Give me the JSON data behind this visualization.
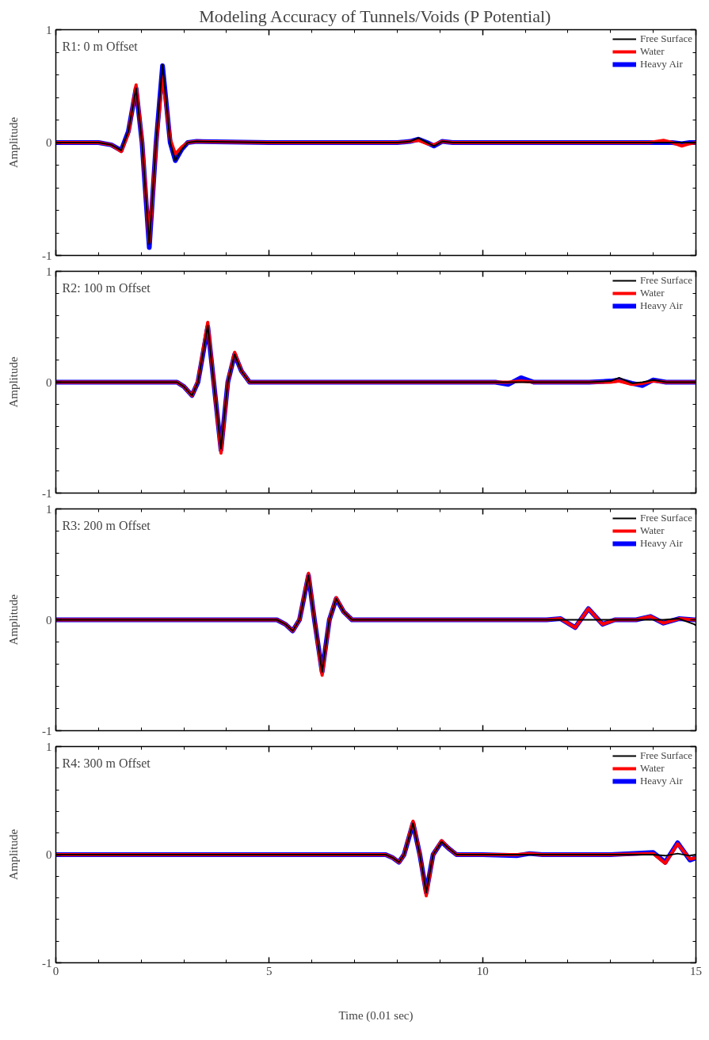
{
  "chart_data": [
    {
      "type": "line",
      "title": "Modeling Accuracy of Tunnels/Voids (P Potential)",
      "ylabel": "Amplitude",
      "annotations": [
        "R1:   0 m Offset"
      ],
      "xlim": [
        0,
        15
      ],
      "xticks": [
        0,
        5,
        10,
        15
      ],
      "ylim": [
        -1,
        1
      ],
      "yticks": [
        -1,
        0,
        1
      ],
      "grid": false,
      "legend": "top right",
      "tick_labels": "y",
      "line_style": "solid",
      "x": [
        0,
        1.0,
        1.3,
        1.53,
        1.7,
        1.88,
        2.02,
        2.19,
        2.35,
        2.5,
        2.68,
        2.8,
        2.95,
        3.09,
        3.3,
        5,
        8.0,
        8.3,
        8.5,
        8.7,
        8.86,
        9.05,
        9.3,
        10,
        12,
        13.9,
        14.24,
        14.45,
        14.67,
        14.85,
        15
      ],
      "series": [
        {
          "name": "Free Surface",
          "color": "#000000",
          "values": [
            0,
            0,
            -0.02,
            -0.07,
            0.1,
            0.48,
            0,
            -0.9,
            0,
            0.69,
            0,
            -0.16,
            -0.06,
            0,
            0.01,
            0,
            0,
            0.01,
            0.04,
            0,
            -0.03,
            0.01,
            0,
            0,
            0,
            0,
            0,
            0,
            0,
            0,
            0
          ]
        },
        {
          "name": "Water",
          "color": "#ff0000",
          "values": [
            0,
            0,
            -0.02,
            -0.08,
            0.08,
            0.51,
            0.02,
            -0.88,
            -0.02,
            0.59,
            0.03,
            -0.1,
            -0.04,
            0,
            0.01,
            0,
            0,
            0.01,
            0.02,
            -0.01,
            -0.02,
            0.01,
            0,
            0,
            0,
            0,
            0.02,
            0,
            -0.03,
            -0.01,
            0
          ]
        },
        {
          "name": "Heavy Air",
          "color": "#0000ff",
          "values": [
            0,
            0,
            -0.02,
            -0.07,
            0.1,
            0.48,
            0,
            -0.93,
            0,
            0.68,
            0,
            -0.16,
            -0.06,
            0,
            0.01,
            0,
            0,
            0.01,
            0.03,
            0,
            -0.03,
            0.01,
            0,
            0,
            0,
            0,
            0,
            0,
            -0.01,
            0,
            0
          ]
        }
      ]
    },
    {
      "type": "line",
      "ylabel": "Amplitude",
      "annotations": [
        "R2: 100 m Offset"
      ],
      "xlim": [
        0,
        15
      ],
      "xticks": [
        0,
        5,
        10,
        15
      ],
      "ylim": [
        -1,
        1
      ],
      "yticks": [
        -1,
        0,
        1
      ],
      "grid": false,
      "legend": "top right",
      "tick_labels": "y",
      "line_style": "solid",
      "x": [
        0,
        2.84,
        3.0,
        3.19,
        3.33,
        3.56,
        3.7,
        3.87,
        4.03,
        4.19,
        4.35,
        4.54,
        5,
        10.3,
        10.6,
        10.9,
        11.2,
        11.5,
        12.5,
        13.0,
        13.2,
        13.5,
        13.75,
        14.0,
        14.3,
        15
      ],
      "series": [
        {
          "name": "Free Surface",
          "color": "#000000",
          "values": [
            0,
            0,
            -0.04,
            -0.12,
            0,
            0.51,
            0,
            -0.6,
            0,
            0.25,
            0.1,
            0,
            0,
            0,
            0,
            0,
            0,
            0,
            0,
            0.01,
            0.04,
            -0.01,
            0,
            0.02,
            0,
            0
          ]
        },
        {
          "name": "Water",
          "color": "#ff0000",
          "values": [
            0,
            0,
            -0.04,
            -0.12,
            0.01,
            0.54,
            0,
            -0.64,
            0,
            0.27,
            0.1,
            0,
            0,
            0,
            0,
            0.01,
            0,
            0,
            0,
            0,
            0.01,
            -0.02,
            -0.01,
            0.01,
            0,
            0
          ]
        },
        {
          "name": "Heavy Air",
          "color": "#0000ff",
          "values": [
            0,
            0,
            -0.04,
            -0.12,
            0,
            0.5,
            0,
            -0.61,
            0,
            0.25,
            0.1,
            0,
            0,
            0,
            -0.02,
            0.04,
            0,
            0,
            0,
            0.01,
            0.02,
            -0.01,
            -0.03,
            0.02,
            0,
            0
          ]
        }
      ]
    },
    {
      "type": "line",
      "ylabel": "Amplitude",
      "annotations": [
        "R3: 200 m Offset"
      ],
      "xlim": [
        0,
        15
      ],
      "xticks": [
        0,
        5,
        10,
        15
      ],
      "ylim": [
        -1,
        1
      ],
      "yticks": [
        -1,
        0,
        1
      ],
      "grid": false,
      "legend": "top right",
      "tick_labels": "y",
      "line_style": "solid",
      "x": [
        0,
        5.18,
        5.38,
        5.55,
        5.71,
        5.92,
        6.06,
        6.24,
        6.41,
        6.57,
        6.75,
        6.94,
        8,
        11.5,
        11.83,
        12.17,
        12.48,
        12.81,
        13.1,
        13.6,
        13.93,
        14.24,
        14.6,
        14.96,
        15
      ],
      "series": [
        {
          "name": "Free Surface",
          "color": "#000000",
          "values": [
            0,
            0,
            -0.04,
            -0.1,
            0,
            0.4,
            0,
            -0.47,
            0,
            0.19,
            0.07,
            0,
            0,
            0,
            0,
            0,
            0,
            0,
            0,
            0,
            0,
            0,
            0.01,
            -0.04,
            -0.05
          ]
        },
        {
          "name": "Water",
          "color": "#ff0000",
          "values": [
            0,
            0,
            -0.04,
            -0.1,
            0,
            0.42,
            0,
            -0.5,
            0,
            0.2,
            0.07,
            0,
            0,
            0,
            0.01,
            -0.07,
            0.1,
            -0.04,
            0,
            0,
            0.03,
            -0.03,
            0.01,
            0,
            0
          ]
        },
        {
          "name": "Heavy Air",
          "color": "#0000ff",
          "values": [
            0,
            0,
            -0.04,
            -0.1,
            0,
            0.4,
            0,
            -0.47,
            0,
            0.19,
            0.07,
            0,
            0,
            0,
            0.01,
            -0.07,
            0.1,
            -0.04,
            0,
            0,
            0.03,
            -0.03,
            0.01,
            0,
            0
          ]
        }
      ]
    },
    {
      "type": "line",
      "ylabel": "Amplitude",
      "xlabel": "Time (0.01 sec)",
      "annotations": [
        "R4: 300 m Offset"
      ],
      "xlim": [
        0,
        15
      ],
      "xticks": [
        0,
        5,
        10,
        15
      ],
      "ylim": [
        -1,
        1
      ],
      "yticks": [
        -1,
        0,
        1
      ],
      "grid": false,
      "legend": "top right",
      "line_style": "solid",
      "x": [
        0,
        7.73,
        7.9,
        8.04,
        8.16,
        8.37,
        8.53,
        8.68,
        8.84,
        9.04,
        9.2,
        9.39,
        10,
        10.8,
        11.1,
        11.4,
        13,
        14.0,
        14.28,
        14.57,
        14.86,
        15
      ],
      "series": [
        {
          "name": "Free Surface",
          "color": "#000000",
          "values": [
            0,
            0,
            -0.03,
            -0.07,
            0,
            0.29,
            0,
            -0.35,
            0,
            0.12,
            0.06,
            0,
            0,
            0,
            0,
            0,
            0,
            0,
            -0.01,
            0.01,
            -0.01,
            0
          ]
        },
        {
          "name": "Water",
          "color": "#ff0000",
          "values": [
            0,
            0,
            -0.03,
            -0.07,
            0,
            0.31,
            0,
            -0.38,
            0,
            0.13,
            0.06,
            0,
            0,
            0,
            0.01,
            0,
            0,
            0.01,
            -0.08,
            0.1,
            -0.04,
            -0.03
          ]
        },
        {
          "name": "Heavy Air",
          "color": "#0000ff",
          "values": [
            0,
            0,
            -0.03,
            -0.07,
            0,
            0.29,
            0,
            -0.35,
            0,
            0.12,
            0.06,
            0,
            0,
            -0.01,
            0.01,
            0,
            0,
            0.02,
            -0.07,
            0.11,
            -0.05,
            -0.03
          ]
        }
      ]
    }
  ]
}
